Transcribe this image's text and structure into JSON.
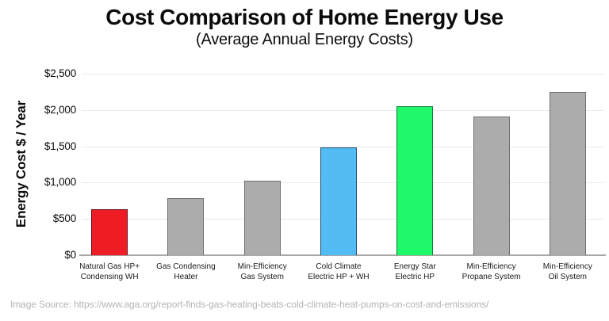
{
  "header": {
    "title": "Cost Comparison of Home Energy Use",
    "subtitle": "(Average Annual Energy Costs)"
  },
  "footer": {
    "source": "Image Source: https://www.aga.org/report-finds-gas-heating-beats-cold-climate-heat-pumps-on-cost-and-emissions/"
  },
  "chart_data": {
    "type": "bar",
    "title": "Cost Comparison of Home Energy Use",
    "subtitle": "(Average Annual Energy Costs)",
    "xlabel": "",
    "ylabel": "Energy Cost $ / Year",
    "ylim": [
      0,
      2500
    ],
    "grid": true,
    "legend": "none",
    "yticks": [
      {
        "label": "$2,500",
        "value": 2500
      },
      {
        "label": "$2,000",
        "value": 2000
      },
      {
        "label": "$1,500",
        "value": 1500
      },
      {
        "label": "$1,000",
        "value": 1000
      },
      {
        "label": "$500",
        "value": 500
      },
      {
        "label": "$0",
        "value": 0
      }
    ],
    "categories": [
      "Natural Gas HP+\nCondensing WH",
      "Gas Condensing\nHeater",
      "Min-Efficiency\nGas System",
      "Cold Climate\nElectric HP + WH",
      "Energy Star\nElectric HP",
      "Min-Efficiency\nPropane System",
      "Min-Efficiency\nOil System"
    ],
    "values": [
      635,
      790,
      1030,
      1490,
      2050,
      1910,
      2250
    ],
    "bar_fill_colors": [
      "#ee1c25",
      "#acacac",
      "#acacac",
      "#54bcf5",
      "#1ff868",
      "#acacac",
      "#acacac"
    ],
    "bar_border_colors": [
      "#6b1016",
      "#6e6e6e",
      "#6e6e6e",
      "#20506f",
      "#157a3a",
      "#6e6e6e",
      "#6e6e6e"
    ],
    "grid_color": "#eaeaea",
    "axis_color": "#a8a8a8"
  }
}
